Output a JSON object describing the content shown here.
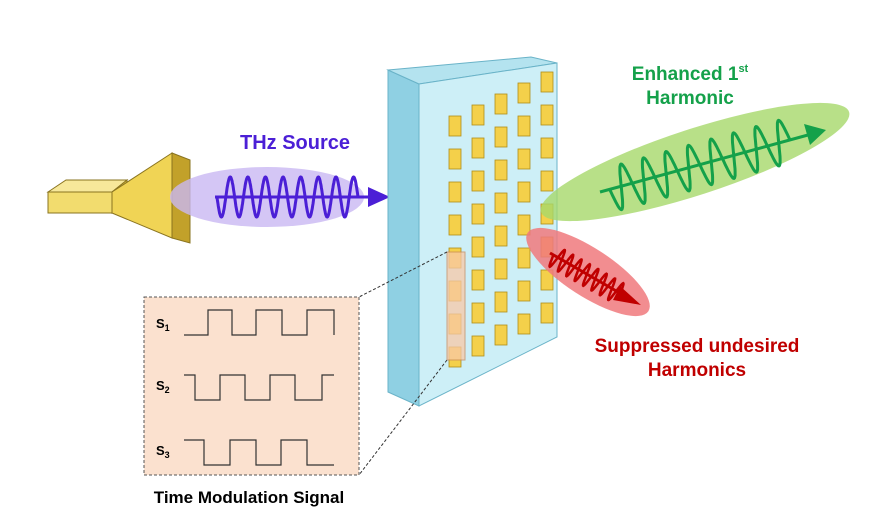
{
  "labels": {
    "thz_source": "THz Source",
    "enhanced_line1_main": "Enhanced 1",
    "enhanced_line1_sup": "st",
    "enhanced_line2": "Harmonic",
    "suppressed_line1": "Suppressed undesired",
    "suppressed_line2": "Harmonics",
    "time_modulation": "Time Modulation Signal"
  },
  "signals": [
    {
      "name": "S",
      "sub": "1"
    },
    {
      "name": "S",
      "sub": "2"
    },
    {
      "name": "S",
      "sub": "3"
    }
  ],
  "colors": {
    "thz_source": "#4b1fd6",
    "enhanced": "#14a14a",
    "suppressed": "#c00000",
    "panel_front": "#cdeff7",
    "cell": "#f4d04a",
    "horn": "#f2dc6e",
    "signal_box": "#fbe1cf"
  }
}
